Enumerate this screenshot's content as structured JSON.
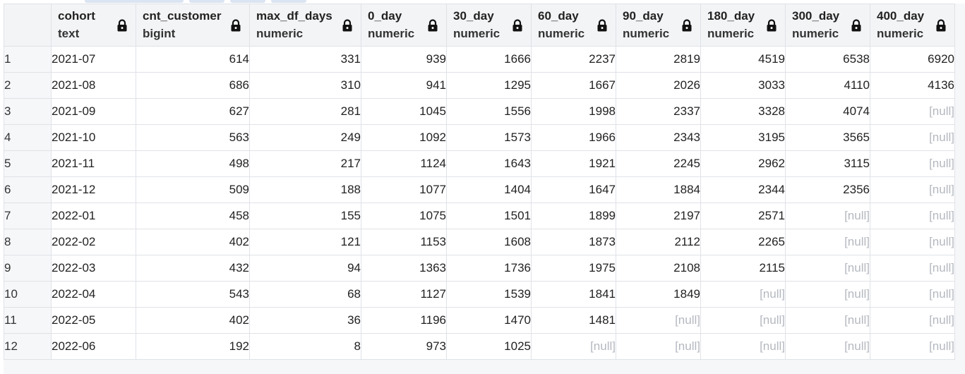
{
  "columns": [
    {
      "name": "cohort",
      "type": "text",
      "align": "left"
    },
    {
      "name": "cnt_customer",
      "type": "bigint",
      "align": "right"
    },
    {
      "name": "max_df_days",
      "type": "numeric",
      "align": "right"
    },
    {
      "name": "0_day",
      "type": "numeric",
      "align": "right"
    },
    {
      "name": "30_day",
      "type": "numeric",
      "align": "right"
    },
    {
      "name": "60_day",
      "type": "numeric",
      "align": "right"
    },
    {
      "name": "90_day",
      "type": "numeric",
      "align": "right"
    },
    {
      "name": "180_day",
      "type": "numeric",
      "align": "right"
    },
    {
      "name": "300_day",
      "type": "numeric",
      "align": "right"
    },
    {
      "name": "400_day",
      "type": "numeric",
      "align": "right"
    }
  ],
  "null_text": "[null]",
  "rows": [
    {
      "num": "1",
      "cells": [
        "2021-07",
        "614",
        "331",
        "939",
        "1666",
        "2237",
        "2819",
        "4519",
        "6538",
        "6920"
      ]
    },
    {
      "num": "2",
      "cells": [
        "2021-08",
        "686",
        "310",
        "941",
        "1295",
        "1667",
        "2026",
        "3033",
        "4110",
        "4136"
      ]
    },
    {
      "num": "3",
      "cells": [
        "2021-09",
        "627",
        "281",
        "1045",
        "1556",
        "1998",
        "2337",
        "3328",
        "4074",
        null
      ]
    },
    {
      "num": "4",
      "cells": [
        "2021-10",
        "563",
        "249",
        "1092",
        "1573",
        "1966",
        "2343",
        "3195",
        "3565",
        null
      ]
    },
    {
      "num": "5",
      "cells": [
        "2021-11",
        "498",
        "217",
        "1124",
        "1643",
        "1921",
        "2245",
        "2962",
        "3115",
        null
      ]
    },
    {
      "num": "6",
      "cells": [
        "2021-12",
        "509",
        "188",
        "1077",
        "1404",
        "1647",
        "1884",
        "2344",
        "2356",
        null
      ]
    },
    {
      "num": "7",
      "cells": [
        "2022-01",
        "458",
        "155",
        "1075",
        "1501",
        "1899",
        "2197",
        "2571",
        null,
        null
      ]
    },
    {
      "num": "8",
      "cells": [
        "2022-02",
        "402",
        "121",
        "1153",
        "1608",
        "1873",
        "2112",
        "2265",
        null,
        null
      ]
    },
    {
      "num": "9",
      "cells": [
        "2022-03",
        "432",
        "94",
        "1363",
        "1736",
        "1975",
        "2108",
        "2115",
        null,
        null
      ]
    },
    {
      "num": "10",
      "cells": [
        "2022-04",
        "543",
        "68",
        "1127",
        "1539",
        "1841",
        "1849",
        null,
        null,
        null
      ]
    },
    {
      "num": "11",
      "cells": [
        "2022-05",
        "402",
        "36",
        "1196",
        "1470",
        "1481",
        null,
        null,
        null,
        null
      ]
    },
    {
      "num": "12",
      "cells": [
        "2022-06",
        "192",
        "8",
        "973",
        "1025",
        null,
        null,
        null,
        null,
        null
      ]
    }
  ],
  "colors": {
    "header_bg": "#f3f4f6",
    "grid_line": "#dfe2e7",
    "null_text": "#b4b8bf",
    "text": "#222222"
  },
  "icons": {
    "column_lock": "lock-icon"
  }
}
